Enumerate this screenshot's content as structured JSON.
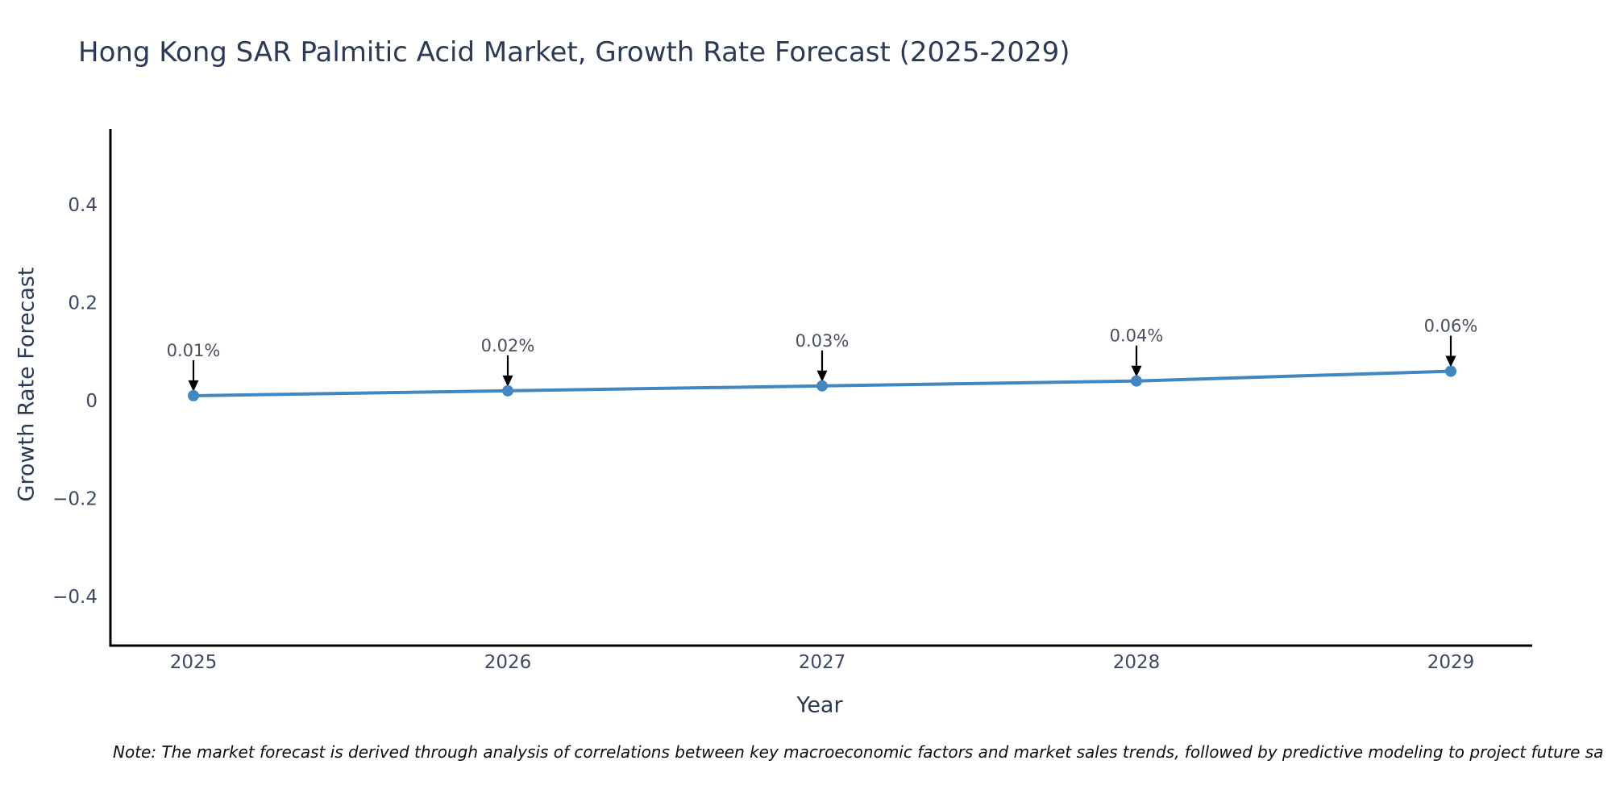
{
  "chart_data": {
    "type": "line",
    "title": "Hong Kong SAR Palmitic Acid Market, Growth Rate Forecast (2025-2029)",
    "xlabel": "Year",
    "ylabel": "Growth Rate Forecast",
    "note": "Note: The market forecast is derived through analysis of correlations between key macroeconomic factors and market sales trends, followed by predictive modeling to project future sa",
    "x": [
      2025,
      2026,
      2027,
      2028,
      2029
    ],
    "x_tick_labels": [
      "2025",
      "2026",
      "2027",
      "2028",
      "2029"
    ],
    "series": [
      {
        "name": "Growth Rate Forecast",
        "values": [
          0.01,
          0.02,
          0.03,
          0.04,
          0.06
        ]
      }
    ],
    "point_labels": [
      "0.01%",
      "0.02%",
      "0.03%",
      "0.04%",
      "0.06%"
    ],
    "annotation_style": "value label above each point with downward black arrow",
    "y_ticks": [
      0.4,
      0.2,
      0,
      -0.2,
      -0.4
    ],
    "y_tick_labels": [
      "0.4",
      "0.2",
      "0",
      "−0.2",
      "−0.4"
    ],
    "ylim": [
      -0.5,
      0.55
    ],
    "grid": false,
    "legend": "none",
    "marker": "circle",
    "colors": {
      "line": "#4287c0",
      "marker": "#4287c0",
      "axis": "#000000",
      "title_text": "#2b3a55",
      "tick_text": "#3c4a63",
      "annotation_text": "#49505e",
      "arrow": "#000000",
      "note_text": "#0d0d0d"
    }
  }
}
